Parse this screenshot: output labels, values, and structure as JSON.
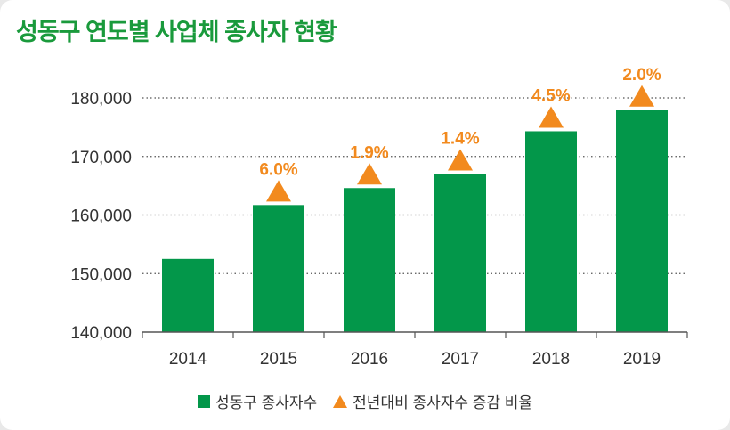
{
  "chart_data": {
    "type": "bar",
    "title": "성동구 연도별 사업체 종사자 현황",
    "categories": [
      "2014",
      "2015",
      "2016",
      "2017",
      "2018",
      "2019"
    ],
    "series": [
      {
        "name": "성동구 종사자수",
        "values": [
          152500,
          161700,
          164600,
          167000,
          174300,
          177900
        ],
        "color": "#03974a"
      },
      {
        "name": "전년대비 종사자수 증감 비율",
        "values": [
          null,
          6.0,
          1.9,
          1.4,
          4.5,
          2.0
        ],
        "labels": [
          "",
          "6.0%",
          "1.9%",
          "1.4%",
          "4.5%",
          "2.0%"
        ],
        "color": "#f28a1e",
        "marker": "triangle"
      }
    ],
    "yticks": [
      140000,
      150000,
      160000,
      170000,
      180000
    ],
    "ytick_labels": [
      "140,000",
      "150,000",
      "160,000",
      "170,000",
      "180,000"
    ],
    "ylim": [
      140000,
      180000
    ],
    "xlabel": "",
    "ylabel": "",
    "grid": "horizontal dotted",
    "legend": "bottom-center"
  }
}
